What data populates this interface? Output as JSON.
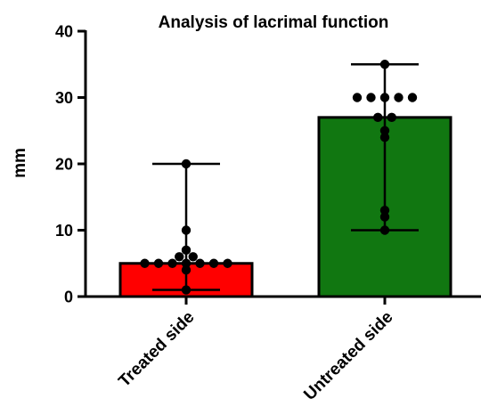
{
  "chart_data": {
    "type": "bar",
    "title": "Analysis of lacrimal function",
    "xlabel": "",
    "ylabel": "mm",
    "ylim": [
      0,
      40
    ],
    "yticks": [
      0,
      10,
      20,
      30,
      40
    ],
    "grid": false,
    "categories": [
      "Treated side",
      "Untreated side"
    ],
    "values": [
      5,
      27
    ],
    "range_low": [
      1,
      10
    ],
    "range_high": [
      20,
      35
    ],
    "colors": [
      "#ff0000",
      "#117711"
    ],
    "points": [
      [
        20,
        10,
        7,
        6,
        6,
        5,
        5,
        5,
        5,
        5,
        5,
        5,
        4,
        1
      ],
      [
        35,
        30,
        30,
        30,
        30,
        30,
        27,
        27,
        25,
        24,
        13,
        12,
        10
      ]
    ]
  }
}
